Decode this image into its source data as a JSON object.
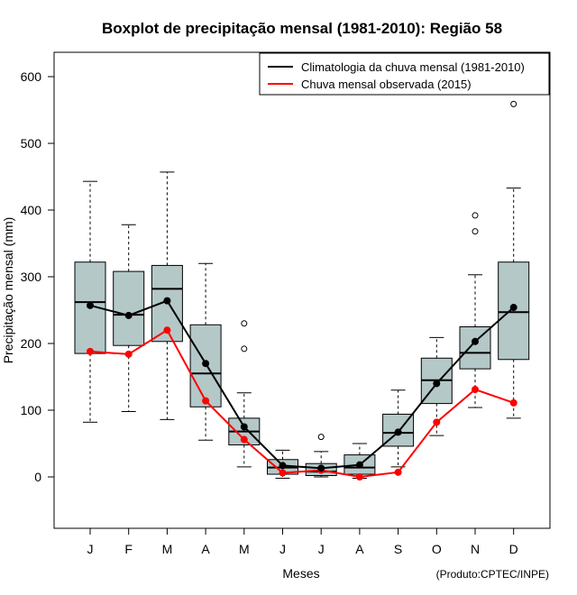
{
  "chart_data": {
    "type": "boxplot",
    "title": "Boxplot de precipitação mensal (1981-2010): Região 58",
    "xlabel": "Meses",
    "ylabel": "Precipitação mensal (mm)",
    "footer": "(Produto:CPTEC/INPE)",
    "ylim": [
      -75,
      635
    ],
    "yticks": [
      0,
      100,
      200,
      300,
      400,
      500,
      600
    ],
    "categories": [
      "J",
      "F",
      "M",
      "A",
      "M",
      "J",
      "J",
      "A",
      "S",
      "O",
      "N",
      "D"
    ],
    "boxes": [
      {
        "min": 82,
        "q1": 185,
        "median": 262,
        "q3": 322,
        "max": 443,
        "outliers": []
      },
      {
        "min": 98,
        "q1": 197,
        "median": 243,
        "q3": 308,
        "max": 378,
        "outliers": []
      },
      {
        "min": 86,
        "q1": 203,
        "median": 282,
        "q3": 317,
        "max": 457,
        "outliers": []
      },
      {
        "min": 55,
        "q1": 105,
        "median": 155,
        "q3": 228,
        "max": 320,
        "outliers": []
      },
      {
        "min": 15,
        "q1": 48,
        "median": 68,
        "q3": 88,
        "max": 126,
        "outliers": [
          230,
          192
        ]
      },
      {
        "min": -2,
        "q1": 4,
        "median": 14,
        "q3": 26,
        "max": 40,
        "outliers": []
      },
      {
        "min": 0,
        "q1": 2,
        "median": 8,
        "q3": 20,
        "max": 38,
        "outliers": [
          60
        ]
      },
      {
        "min": -2,
        "q1": 4,
        "median": 14,
        "q3": 33,
        "max": 50,
        "outliers": []
      },
      {
        "min": 15,
        "q1": 46,
        "median": 66,
        "q3": 94,
        "max": 130,
        "outliers": []
      },
      {
        "min": 62,
        "q1": 110,
        "median": 145,
        "q3": 178,
        "max": 209,
        "outliers": []
      },
      {
        "min": 104,
        "q1": 162,
        "median": 186,
        "q3": 225,
        "max": 303,
        "outliers": [
          392,
          368
        ]
      },
      {
        "min": 88,
        "q1": 176,
        "median": 247,
        "q3": 322,
        "max": 433,
        "outliers": [
          559
        ]
      }
    ],
    "series": [
      {
        "name": "Climatologia da chuva mensal (1981-2010)",
        "color": "#000000",
        "values": [
          257,
          242,
          264,
          170,
          75,
          17,
          13,
          18,
          67,
          140,
          203,
          254
        ]
      },
      {
        "name": "Chuva mensal observada (2015)",
        "color": "#ff0000",
        "values": [
          188,
          184,
          220,
          114,
          56,
          6,
          10,
          0,
          7,
          82,
          131,
          111
        ]
      }
    ],
    "box_fill": "#b4c8c8",
    "legend_position": "top-right"
  }
}
